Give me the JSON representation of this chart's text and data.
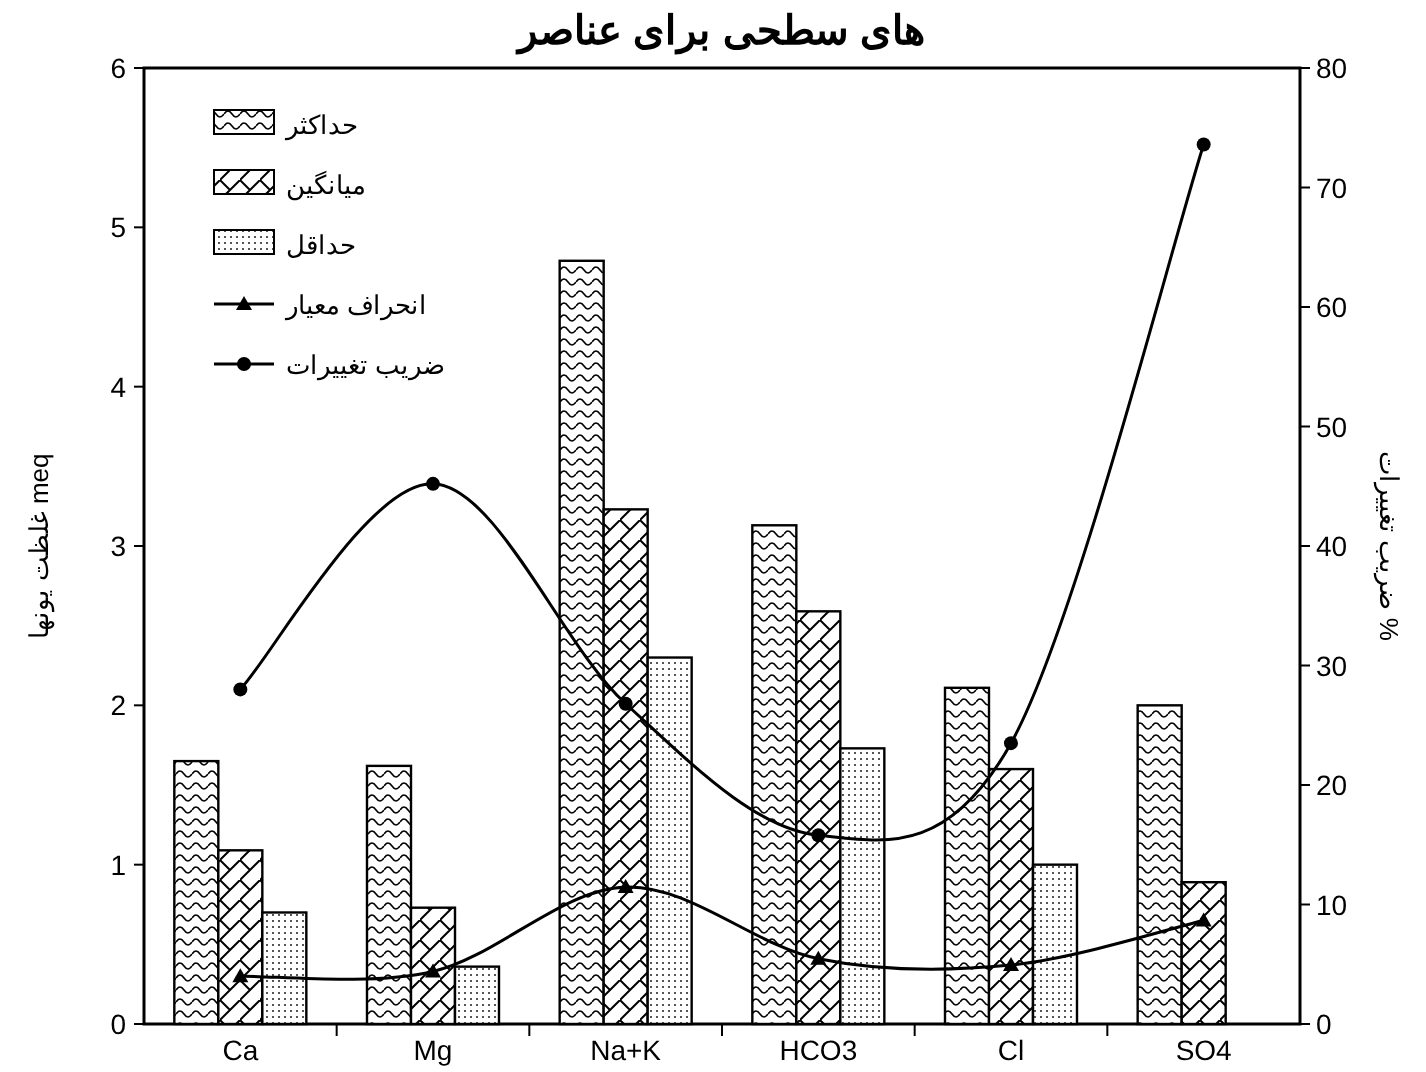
{
  "chart_data": {
    "type": "bar",
    "title": "های سطحی برای عناصر",
    "ylabel": "غلظت یونها meq",
    "y2label": "ضریب تغییرات %",
    "categories": [
      "Ca",
      "Mg",
      "Na+K",
      "HCO3",
      "Cl",
      "SO4"
    ],
    "series": [
      {
        "name": "حداکثر",
        "color": "#000000",
        "values": [
          1.65,
          1.62,
          4.79,
          3.13,
          2.11,
          2.0
        ]
      },
      {
        "name": "میانگین",
        "color": "#000000",
        "values": [
          1.09,
          0.73,
          3.23,
          2.59,
          1.6,
          0.89
        ]
      },
      {
        "name": "حداقل",
        "color": "#000000",
        "values": [
          0.7,
          0.36,
          2.3,
          1.73,
          1.0,
          null
        ]
      },
      {
        "name": "انحراف معیار",
        "type": "line",
        "color": "#000000",
        "marker": "triangle",
        "values": [
          0.3,
          0.33,
          0.86,
          0.41,
          0.37,
          0.65
        ]
      },
      {
        "name": "ضریب تغییرات",
        "type": "line",
        "color": "#000000",
        "marker": "circle",
        "axis": "y2",
        "values": [
          28,
          45.2,
          26.8,
          15.8,
          23.5,
          73.6
        ]
      }
    ],
    "ylim": [
      0,
      6
    ],
    "yticks": [
      0,
      1,
      2,
      3,
      4,
      5,
      6
    ],
    "y2lim": [
      0,
      80
    ],
    "y2ticks": [
      0,
      10,
      20,
      30,
      40,
      50,
      60,
      70,
      80
    ],
    "legend": "top left"
  }
}
